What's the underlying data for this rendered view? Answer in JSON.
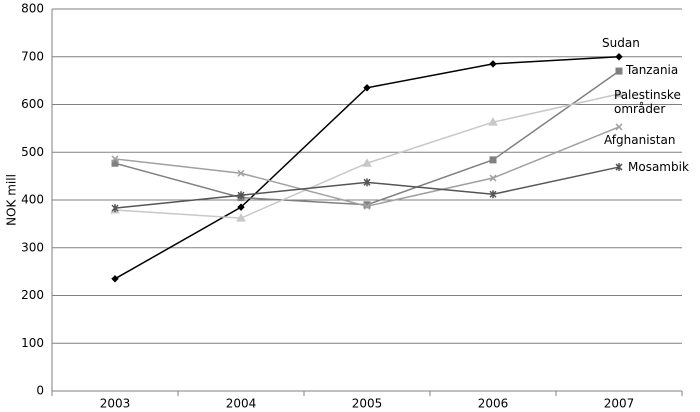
{
  "chart_data": {
    "type": "line",
    "y_label": "NOK mill",
    "categories": [
      "2003",
      "2004",
      "2005",
      "2006",
      "2007"
    ],
    "ylim": [
      0,
      800
    ],
    "yticks": [
      0,
      100,
      200,
      300,
      400,
      500,
      600,
      700,
      800
    ],
    "grid": true,
    "series": [
      {
        "name": "Sudan",
        "color": "#000000",
        "marker": "diamond",
        "values": [
          235,
          385,
          635,
          685,
          700
        ]
      },
      {
        "name": "Tanzania",
        "color": "#808080",
        "marker": "square",
        "values": [
          477,
          405,
          390,
          484,
          670
        ]
      },
      {
        "name": "Palestinske områder",
        "color": "#c8c8c8",
        "marker": "triangle",
        "values": [
          379,
          362,
          477,
          563,
          622
        ]
      },
      {
        "name": "Afghanistan",
        "color": "#a0a0a0",
        "marker": "x",
        "values": [
          486,
          456,
          387,
          446,
          553
        ]
      },
      {
        "name": "Mosambik",
        "color": "#555555",
        "marker": "star",
        "values": [
          383,
          410,
          437,
          412,
          469
        ]
      }
    ]
  }
}
